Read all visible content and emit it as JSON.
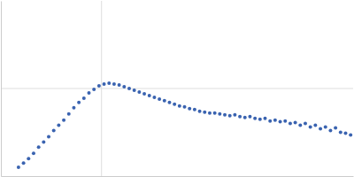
{
  "chart_data": {
    "type": "scatter",
    "x": [
      0.175,
      0.225,
      0.275,
      0.325,
      0.375,
      0.425,
      0.475,
      0.525,
      0.575,
      0.625,
      0.675,
      0.725,
      0.775,
      0.825,
      0.875,
      0.925,
      0.975,
      1.025,
      1.075,
      1.125,
      1.175,
      1.225,
      1.275,
      1.325,
      1.375,
      1.425,
      1.475,
      1.525,
      1.575,
      1.625,
      1.675,
      1.725,
      1.775,
      1.825,
      1.875,
      1.925,
      1.975,
      2.025,
      2.075,
      2.125,
      2.175,
      2.225,
      2.275,
      2.325,
      2.375,
      2.425,
      2.475,
      2.525,
      2.575,
      2.625,
      2.675,
      2.725,
      2.775,
      2.825,
      2.875,
      2.925,
      2.975,
      3.025,
      3.075,
      3.125,
      3.175,
      3.225,
      3.275,
      3.325,
      3.375,
      3.425,
      3.475
    ],
    "values": [
      0.1,
      0.15,
      0.2,
      0.26,
      0.33,
      0.39,
      0.45,
      0.52,
      0.58,
      0.64,
      0.71,
      0.78,
      0.84,
      0.89,
      0.95,
      0.99,
      1.03,
      1.05,
      1.06,
      1.05,
      1.04,
      1.02,
      1.0,
      0.98,
      0.96,
      0.94,
      0.92,
      0.9,
      0.88,
      0.86,
      0.84,
      0.82,
      0.8,
      0.79,
      0.77,
      0.76,
      0.74,
      0.73,
      0.72,
      0.72,
      0.71,
      0.7,
      0.69,
      0.7,
      0.68,
      0.67,
      0.68,
      0.66,
      0.65,
      0.66,
      0.63,
      0.64,
      0.62,
      0.63,
      0.6,
      0.61,
      0.58,
      0.6,
      0.56,
      0.58,
      0.54,
      0.56,
      0.52,
      0.55,
      0.5,
      0.49,
      0.47
    ],
    "color": "#3a63b0",
    "marker": "circle",
    "xlim": [
      0,
      3.5
    ],
    "xticks": [
      1
    ],
    "ylim": [
      0,
      2
    ],
    "yticks": [
      1
    ],
    "grid": true,
    "tick_labels": false
  }
}
